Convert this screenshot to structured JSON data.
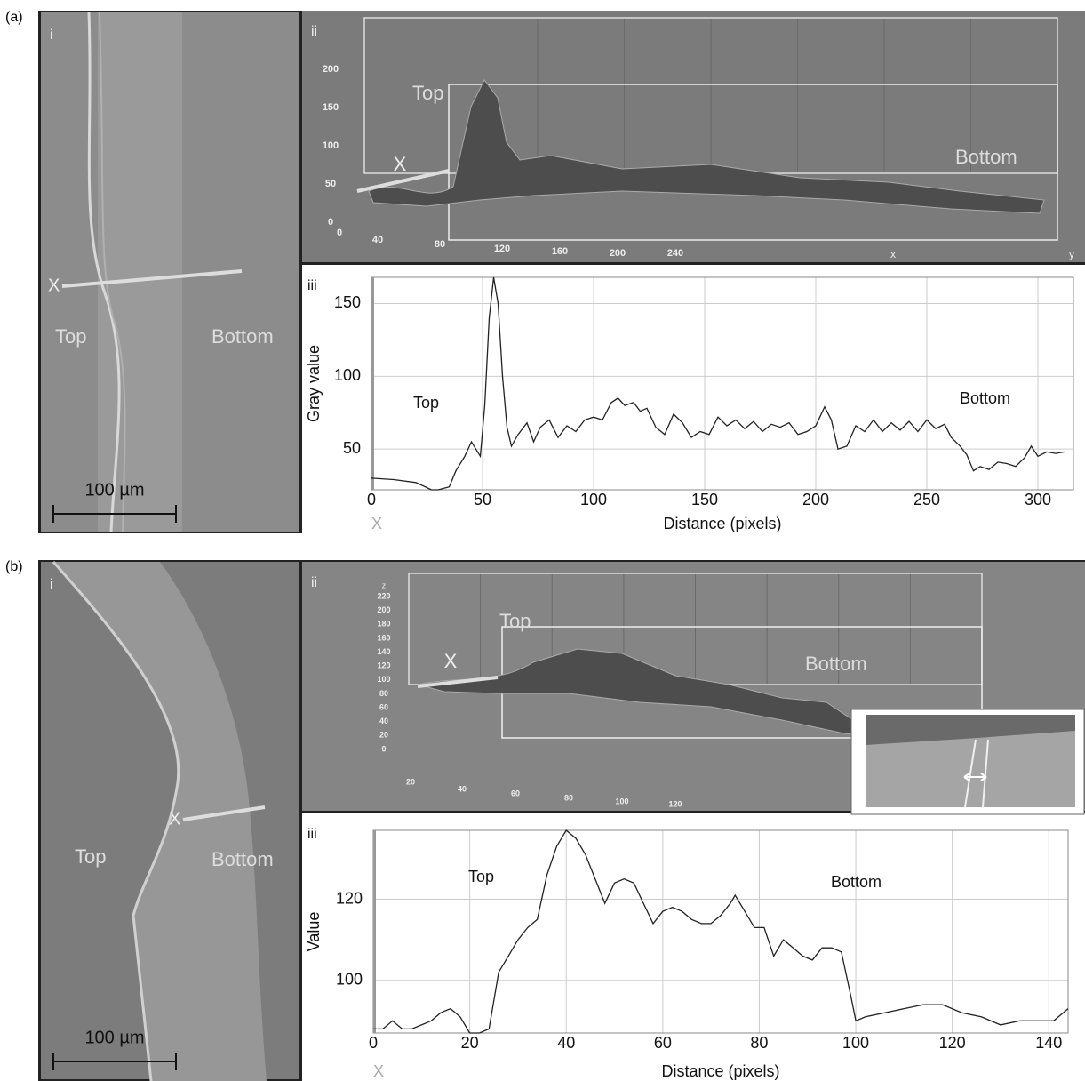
{
  "figure": {
    "panels": [
      {
        "label": "(a)",
        "micrograph": {
          "sub": "i",
          "x_marker": "X",
          "top": "Top",
          "bottom": "Bottom",
          "scale_bar": "100 µm"
        },
        "surface": {
          "sub": "ii",
          "z_ticks": [
            0,
            50,
            100,
            150,
            200
          ],
          "x_ticks": [
            0,
            40,
            80,
            120,
            160,
            200,
            240
          ],
          "x_axis": "x",
          "y_axis": "y",
          "x_marker": "X",
          "top": "Top",
          "bottom": "Bottom"
        }
      },
      {
        "label": "(b)",
        "micrograph": {
          "sub": "i",
          "x_marker": "X",
          "top": "Top",
          "bottom": "Bottom",
          "scale_bar": "100 µm"
        },
        "surface": {
          "sub": "ii",
          "z_label": "z",
          "z_ticks": [
            0,
            20,
            40,
            60,
            80,
            100,
            120,
            140,
            160,
            180,
            200,
            220
          ],
          "x_ticks": [
            20,
            40,
            60,
            80,
            100,
            120
          ],
          "x_marker": "X",
          "top": "Top",
          "bottom": "Bottom"
        }
      }
    ]
  },
  "chart_data": [
    {
      "type": "line",
      "panel": "iii",
      "x_marker": "X",
      "annotations": [
        "Top",
        "Bottom"
      ],
      "x_label": "Distance (pixels)",
      "y_label": "Gray value",
      "grid": true,
      "color": "#222222",
      "xlim": [
        0,
        316
      ],
      "ylim": [
        22,
        168
      ],
      "xticks": [
        0,
        50,
        100,
        150,
        200,
        250,
        300
      ],
      "yticks": [
        50,
        100,
        150
      ],
      "x": [
        0,
        10,
        20,
        27,
        30,
        35,
        38,
        42,
        45,
        47,
        49,
        51,
        53,
        55,
        57,
        59,
        61,
        63,
        66,
        70,
        73,
        76,
        80,
        84,
        88,
        92,
        96,
        100,
        104,
        108,
        111,
        114,
        118,
        121,
        124,
        128,
        132,
        136,
        140,
        144,
        148,
        152,
        156,
        160,
        164,
        168,
        172,
        176,
        180,
        184,
        188,
        192,
        196,
        200,
        204,
        207,
        210,
        214,
        218,
        222,
        226,
        230,
        234,
        238,
        242,
        246,
        250,
        254,
        258,
        261,
        265,
        268,
        271,
        274,
        278,
        282,
        286,
        290,
        294,
        297,
        300,
        304,
        308,
        312
      ],
      "values": [
        30,
        29,
        27,
        22,
        22,
        24,
        35,
        45,
        55,
        50,
        45,
        80,
        140,
        168,
        150,
        100,
        65,
        52,
        60,
        68,
        55,
        65,
        70,
        58,
        66,
        62,
        70,
        72,
        70,
        82,
        85,
        80,
        82,
        76,
        78,
        65,
        60,
        74,
        68,
        58,
        62,
        60,
        72,
        66,
        70,
        64,
        69,
        62,
        67,
        65,
        68,
        60,
        62,
        66,
        79,
        70,
        50,
        52,
        66,
        62,
        70,
        62,
        68,
        63,
        69,
        62,
        70,
        64,
        67,
        58,
        52,
        46,
        35,
        38,
        36,
        41,
        40,
        38,
        44,
        52,
        45,
        48,
        47,
        48
      ]
    },
    {
      "type": "line",
      "panel": "iii",
      "x_marker": "X",
      "annotations": [
        "Top",
        "Bottom"
      ],
      "x_label": "Distance (pixels)",
      "y_label": "Value",
      "grid": true,
      "color": "#222222",
      "xlim": [
        0,
        144
      ],
      "ylim": [
        87,
        137
      ],
      "xticks": [
        0,
        20,
        40,
        60,
        80,
        100,
        120,
        140
      ],
      "yticks": [
        100,
        120
      ],
      "x": [
        0,
        2,
        4,
        6,
        8,
        10,
        12,
        14,
        16,
        18,
        20,
        22,
        24,
        26,
        28,
        30,
        32,
        34,
        36,
        38,
        40,
        42,
        44,
        46,
        48,
        50,
        52,
        54,
        56,
        58,
        60,
        62,
        64,
        66,
        68,
        70,
        72,
        74,
        75,
        77,
        79,
        81,
        83,
        85,
        87,
        89,
        91,
        93,
        95,
        97,
        99,
        100,
        102,
        106,
        110,
        114,
        118,
        122,
        126,
        130,
        134,
        138,
        141,
        144
      ],
      "values": [
        88,
        88,
        90,
        88,
        88,
        89,
        90,
        92,
        93,
        91,
        87,
        87,
        88,
        102,
        106,
        110,
        113,
        115,
        126,
        133,
        137,
        135,
        131,
        125,
        119,
        124,
        125,
        124,
        119,
        114,
        117,
        118,
        117,
        115,
        114,
        114,
        116,
        119,
        121,
        117,
        113,
        113,
        106,
        110,
        108,
        106,
        105,
        108,
        108,
        107,
        96,
        90,
        91,
        92,
        93,
        94,
        94,
        92,
        91,
        89,
        90,
        90,
        90,
        93
      ]
    }
  ]
}
